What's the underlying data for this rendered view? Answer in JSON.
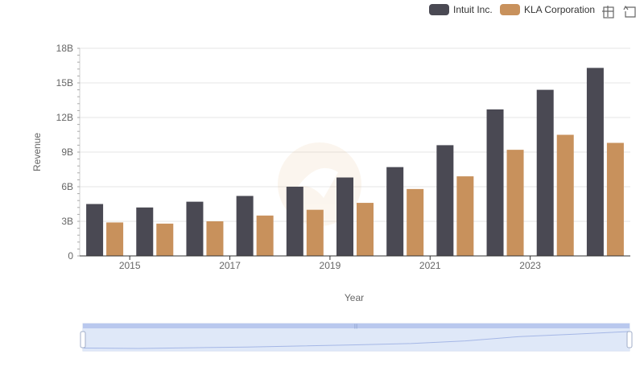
{
  "chart_data": {
    "type": "bar",
    "categories": [
      "2014",
      "2015",
      "2016",
      "2017",
      "2018",
      "2019",
      "2020",
      "2021",
      "2022",
      "2023",
      "2024"
    ],
    "series": [
      {
        "name": "Intuit Inc.",
        "color": "#4a4953",
        "values": [
          4.5,
          4.2,
          4.7,
          5.2,
          6.0,
          6.8,
          7.7,
          9.6,
          12.7,
          14.4,
          16.3
        ]
      },
      {
        "name": "KLA Corporation",
        "color": "#c8915c",
        "values": [
          2.9,
          2.8,
          3.0,
          3.5,
          4.0,
          4.6,
          5.8,
          6.9,
          9.2,
          10.5,
          9.8
        ]
      }
    ],
    "ylim": [
      0,
      18
    ],
    "yticks": [
      0,
      3,
      6,
      9,
      12,
      15,
      18
    ],
    "ytick_labels": [
      "0",
      "3B",
      "6B",
      "9B",
      "12B",
      "15B",
      "18B"
    ],
    "xtick_labels": [
      "2015",
      "2017",
      "2019",
      "2021",
      "2023"
    ],
    "xlabel": "Year",
    "ylabel": "Revenue",
    "legend_position": "top-right",
    "grid": true
  },
  "toolbox": {
    "zoom_icon": "zoom-icon",
    "restore_icon": "restore-icon"
  },
  "datazoom": {
    "range_start": 0,
    "range_end": 1,
    "handle_label": "|||"
  }
}
